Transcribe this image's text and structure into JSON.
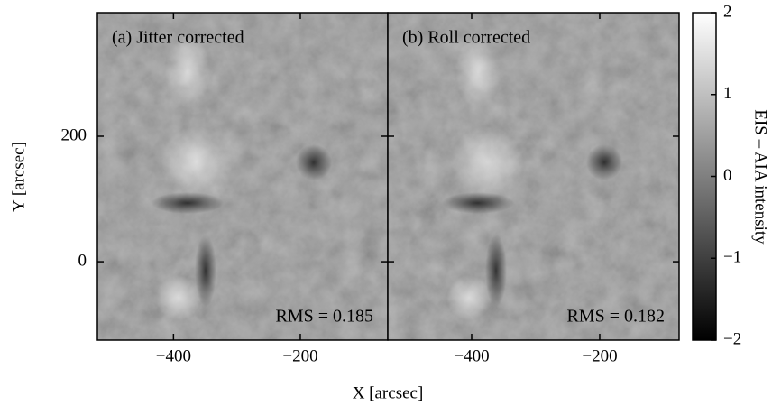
{
  "chart_data": [
    {
      "type": "image",
      "annotation": "(a) Jitter corrected",
      "rms_text": "RMS = 0.185",
      "xlabel": "X [arcsec]",
      "ylabel": "Y [arcsec]",
      "xlim": [
        -520,
        -62
      ],
      "ylim": [
        -125,
        397
      ],
      "xticks": [
        {
          "value": -400,
          "label": "−400"
        },
        {
          "value": -200,
          "label": "−200"
        }
      ],
      "yticks": [
        0,
        200
      ]
    },
    {
      "type": "image",
      "annotation": "(b) Roll corrected",
      "rms_text": "RMS = 0.182",
      "xlim": [
        -531,
        -76
      ],
      "ylim": [
        -125,
        397
      ],
      "xticks": [
        {
          "value": -400,
          "label": "−400"
        },
        {
          "value": -200,
          "label": "−200"
        }
      ],
      "yticks": [
        0,
        200
      ]
    },
    {
      "type": "colorbar",
      "label": "EIS – AIA intensity",
      "ylim": [
        -2,
        2
      ],
      "yticks": [
        {
          "value": -2,
          "label": "−2"
        },
        {
          "value": -1,
          "label": "−1"
        },
        0,
        1,
        2
      ],
      "colors": [
        "#000000",
        "#ffffff"
      ]
    }
  ]
}
